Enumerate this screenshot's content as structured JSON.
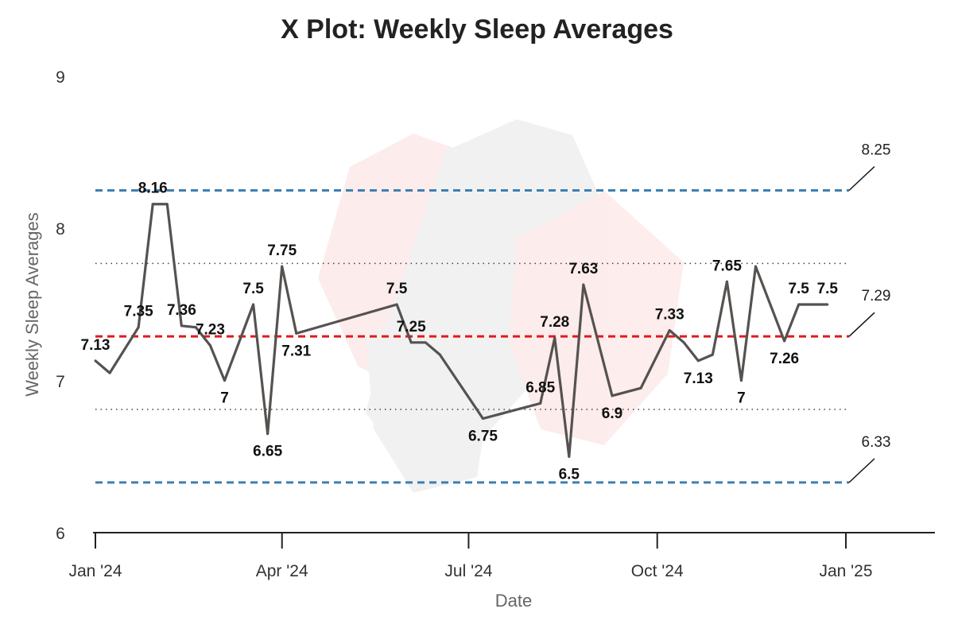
{
  "chart_data": {
    "type": "line",
    "title": "X Plot: Weekly Sleep Averages",
    "xlabel": "Date",
    "ylabel": "Weekly Sleep Averages",
    "ylim": [
      6,
      9
    ],
    "y_ticks": [
      "6",
      "7",
      "8",
      "9"
    ],
    "x_range": [
      "2024-01-01",
      "2025-01-01"
    ],
    "x_ticks": [
      {
        "date": "2024-01-01",
        "label": "Jan '24"
      },
      {
        "date": "2024-04-01",
        "label": "Apr '24"
      },
      {
        "date": "2024-07-01",
        "label": "Jul '24"
      },
      {
        "date": "2024-10-01",
        "label": "Oct '24"
      },
      {
        "date": "2025-01-01",
        "label": "Jan '25"
      }
    ],
    "grid": false,
    "series": [
      {
        "color": "#555250",
        "points": [
          {
            "x": "2024-01-01",
            "y": 7.13,
            "label": "7.13"
          },
          {
            "x": "2024-01-08",
            "y": 7.05,
            "label": ""
          },
          {
            "x": "2024-01-22",
            "y": 7.35,
            "label": "7.35"
          },
          {
            "x": "2024-01-29",
            "y": 8.16,
            "label": "8.16"
          },
          {
            "x": "2024-02-05",
            "y": 8.16,
            "label": ""
          },
          {
            "x": "2024-02-12",
            "y": 7.36,
            "label": "7.36"
          },
          {
            "x": "2024-02-19",
            "y": 7.35,
            "label": ""
          },
          {
            "x": "2024-02-26",
            "y": 7.23,
            "label": "7.23"
          },
          {
            "x": "2024-03-04",
            "y": 7.0,
            "label": "7"
          },
          {
            "x": "2024-03-18",
            "y": 7.5,
            "label": "7.5"
          },
          {
            "x": "2024-03-25",
            "y": 6.65,
            "label": "6.65"
          },
          {
            "x": "2024-04-01",
            "y": 7.75,
            "label": "7.75"
          },
          {
            "x": "2024-04-08",
            "y": 7.31,
            "label": "7.31"
          },
          {
            "x": "2024-05-27",
            "y": 7.5,
            "label": "7.5"
          },
          {
            "x": "2024-06-03",
            "y": 7.25,
            "label": "7.25"
          },
          {
            "x": "2024-06-10",
            "y": 7.25,
            "label": ""
          },
          {
            "x": "2024-06-17",
            "y": 7.17,
            "label": ""
          },
          {
            "x": "2024-07-08",
            "y": 6.75,
            "label": "6.75"
          },
          {
            "x": "2024-08-05",
            "y": 6.85,
            "label": "6.85"
          },
          {
            "x": "2024-08-12",
            "y": 7.28,
            "label": "7.28"
          },
          {
            "x": "2024-08-19",
            "y": 6.5,
            "label": "6.5"
          },
          {
            "x": "2024-08-26",
            "y": 7.63,
            "label": "7.63"
          },
          {
            "x": "2024-09-09",
            "y": 6.9,
            "label": "6.9"
          },
          {
            "x": "2024-09-23",
            "y": 6.95,
            "label": ""
          },
          {
            "x": "2024-10-07",
            "y": 7.33,
            "label": "7.33"
          },
          {
            "x": "2024-10-14",
            "y": 7.25,
            "label": ""
          },
          {
            "x": "2024-10-21",
            "y": 7.13,
            "label": "7.13"
          },
          {
            "x": "2024-10-28",
            "y": 7.17,
            "label": ""
          },
          {
            "x": "2024-11-04",
            "y": 7.65,
            "label": "7.65"
          },
          {
            "x": "2024-11-11",
            "y": 7.0,
            "label": "7"
          },
          {
            "x": "2024-11-18",
            "y": 7.75,
            "label": ""
          },
          {
            "x": "2024-12-02",
            "y": 7.26,
            "label": "7.26"
          },
          {
            "x": "2024-12-09",
            "y": 7.5,
            "label": "7.5"
          },
          {
            "x": "2024-12-23",
            "y": 7.5,
            "label": "7.5"
          }
        ]
      }
    ],
    "reference_lines": [
      {
        "value": 8.25,
        "label": "8.25",
        "color": "#3f7fb0",
        "style": "dashed"
      },
      {
        "value": 7.29,
        "label": "7.29",
        "color": "#e01b1b",
        "style": "dashed"
      },
      {
        "value": 6.33,
        "label": "6.33",
        "color": "#3f7fb0",
        "style": "dashed"
      },
      {
        "value": 7.77,
        "label": "",
        "color": "#444444",
        "style": "dotted"
      },
      {
        "value": 6.81,
        "label": "",
        "color": "#444444",
        "style": "dotted"
      }
    ]
  }
}
